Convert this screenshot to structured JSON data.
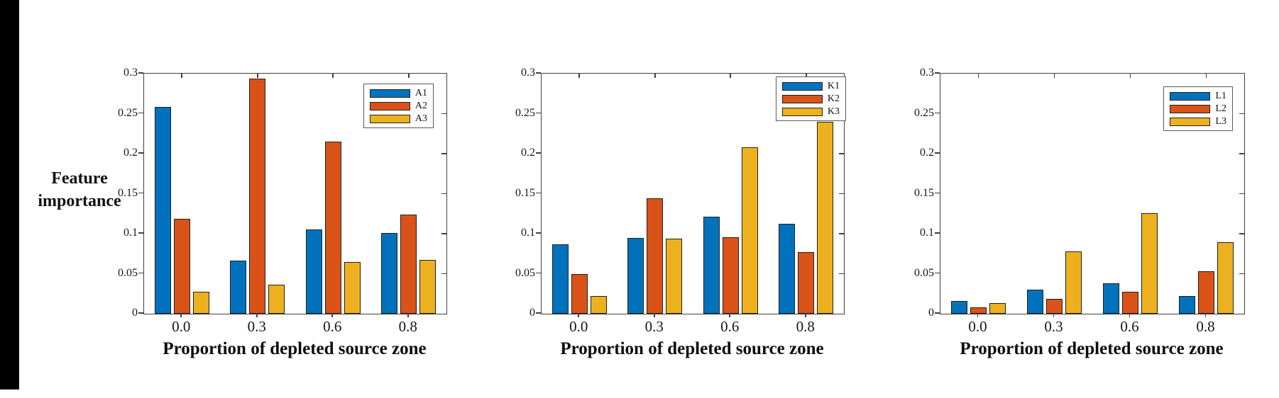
{
  "figure": {
    "ylabel_line1": "Feature",
    "ylabel_line2": "importance",
    "background": "#ffffff",
    "left_strip_color": "#000000"
  },
  "axis_style": {
    "axis_color": "#3f3f3f",
    "tick_label_color": "#161616"
  },
  "chart_data": [
    {
      "id": "a",
      "type": "bar",
      "title": "",
      "xlabel": "Proportion of depleted source zone",
      "ylabel": "Feature importance",
      "ylim": [
        0,
        0.3
      ],
      "yticks": [
        0,
        0.05,
        0.1,
        0.15,
        0.2,
        0.25,
        0.3
      ],
      "ytick_labels": [
        "0",
        "0.05",
        "0.1",
        "0.15",
        "0.2",
        "0.25",
        "0.3"
      ],
      "categories": [
        "0.0",
        "0.3",
        "0.6",
        "0.8"
      ],
      "grid": false,
      "legend": {
        "position": "top-right",
        "entries": [
          "A1",
          "A2",
          "A3"
        ]
      },
      "series": [
        {
          "name": "A1",
          "color": "#0072BD",
          "values": [
            0.258,
            0.066,
            0.105,
            0.101
          ]
        },
        {
          "name": "A2",
          "color": "#D95319",
          "values": [
            0.119,
            0.294,
            0.215,
            0.124
          ]
        },
        {
          "name": "A3",
          "color": "#EDB120",
          "values": [
            0.027,
            0.036,
            0.065,
            0.067
          ]
        }
      ]
    },
    {
      "id": "k",
      "type": "bar",
      "title": "",
      "xlabel": "Proportion of depleted source zone",
      "ylabel": "",
      "ylim": [
        0,
        0.3
      ],
      "yticks": [
        0,
        0.05,
        0.1,
        0.15,
        0.2,
        0.25,
        0.3
      ],
      "ytick_labels": [
        "0",
        "0.05",
        "0.1",
        "0.15",
        "0.2",
        "0.25",
        "0.3"
      ],
      "categories": [
        "0.0",
        "0.3",
        "0.6",
        "0.8"
      ],
      "grid": false,
      "legend": {
        "position": "top-right",
        "entries": [
          "K1",
          "K2",
          "K3"
        ]
      },
      "series": [
        {
          "name": "K1",
          "color": "#0072BD",
          "values": [
            0.087,
            0.095,
            0.121,
            0.112
          ]
        },
        {
          "name": "K2",
          "color": "#D95319",
          "values": [
            0.05,
            0.144,
            0.096,
            0.077
          ]
        },
        {
          "name": "K3",
          "color": "#EDB120",
          "values": [
            0.022,
            0.094,
            0.208,
            0.24
          ]
        }
      ]
    },
    {
      "id": "l",
      "type": "bar",
      "title": "",
      "xlabel": "Proportion of depleted source zone",
      "ylabel": "",
      "ylim": [
        0,
        0.3
      ],
      "yticks": [
        0,
        0.05,
        0.1,
        0.15,
        0.2,
        0.25,
        0.3
      ],
      "ytick_labels": [
        "0",
        "0.05",
        "0.1",
        "0.15",
        "0.2",
        "0.25",
        "0.3"
      ],
      "categories": [
        "0.0",
        "0.3",
        "0.6",
        "0.8"
      ],
      "grid": false,
      "legend": {
        "position": "top-right",
        "entries": [
          "L1",
          "L2",
          "L3"
        ]
      },
      "series": [
        {
          "name": "L1",
          "color": "#0072BD",
          "values": [
            0.016,
            0.03,
            0.038,
            0.022
          ]
        },
        {
          "name": "L2",
          "color": "#D95319",
          "values": [
            0.008,
            0.019,
            0.027,
            0.053
          ]
        },
        {
          "name": "L3",
          "color": "#EDB120",
          "values": [
            0.013,
            0.078,
            0.126,
            0.089
          ]
        }
      ]
    }
  ]
}
